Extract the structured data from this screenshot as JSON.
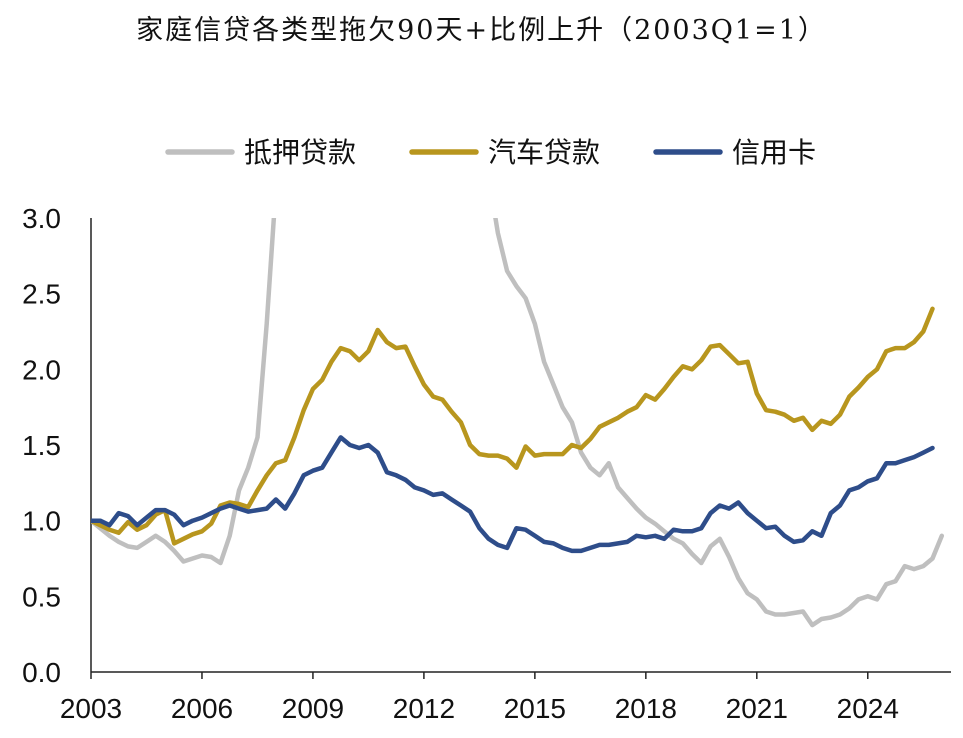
{
  "chart_data": {
    "type": "line",
    "title": "家庭信贷各类型拖欠90天+比例上升（2003Q1=1）",
    "xlabel": "",
    "ylabel": "",
    "xlim": [
      2003,
      2026.25
    ],
    "ylim": [
      0,
      3.0
    ],
    "yticks": [
      0.0,
      0.5,
      1.0,
      1.5,
      2.0,
      2.5,
      3.0
    ],
    "ytick_labels": [
      "0.0",
      "0.5",
      "1.0",
      "1.5",
      "2.0",
      "2.5",
      "3.0"
    ],
    "xticks": [
      2003,
      2006,
      2009,
      2012,
      2015,
      2018,
      2021,
      2024
    ],
    "xtick_labels": [
      "2003",
      "2006",
      "2009",
      "2012",
      "2015",
      "2018",
      "2021",
      "2024"
    ],
    "legend_position": "top-center",
    "grid": false,
    "series": [
      {
        "name": "抵押贷款",
        "color": "#bfbfbf",
        "points": [
          [
            2003.0,
            1.0
          ],
          [
            2003.25,
            0.95
          ],
          [
            2003.5,
            0.9
          ],
          [
            2003.75,
            0.86
          ],
          [
            2004.0,
            0.83
          ],
          [
            2004.25,
            0.82
          ],
          [
            2004.5,
            0.86
          ],
          [
            2004.75,
            0.9
          ],
          [
            2005.0,
            0.86
          ],
          [
            2005.25,
            0.8
          ],
          [
            2005.5,
            0.73
          ],
          [
            2005.75,
            0.75
          ],
          [
            2006.0,
            0.77
          ],
          [
            2006.25,
            0.76
          ],
          [
            2006.5,
            0.72
          ],
          [
            2006.75,
            0.9
          ],
          [
            2007.0,
            1.2
          ],
          [
            2007.25,
            1.35
          ],
          [
            2007.5,
            1.55
          ],
          [
            2007.75,
            2.3
          ],
          [
            2008.0,
            3.2
          ]
        ]
      },
      {
        "name": "抵押贷款",
        "color": "#bfbfbf",
        "points": [
          [
            2013.8,
            3.2
          ],
          [
            2014.0,
            2.9
          ],
          [
            2014.25,
            2.65
          ],
          [
            2014.5,
            2.55
          ],
          [
            2014.75,
            2.47
          ],
          [
            2015.0,
            2.3
          ],
          [
            2015.25,
            2.05
          ],
          [
            2015.5,
            1.9
          ],
          [
            2015.75,
            1.75
          ],
          [
            2016.0,
            1.65
          ],
          [
            2016.25,
            1.45
          ],
          [
            2016.5,
            1.35
          ],
          [
            2016.75,
            1.3
          ],
          [
            2017.0,
            1.38
          ],
          [
            2017.25,
            1.22
          ],
          [
            2017.5,
            1.15
          ],
          [
            2017.75,
            1.08
          ],
          [
            2018.0,
            1.02
          ],
          [
            2018.25,
            0.98
          ],
          [
            2018.5,
            0.93
          ],
          [
            2018.75,
            0.88
          ],
          [
            2019.0,
            0.85
          ],
          [
            2019.25,
            0.78
          ],
          [
            2019.5,
            0.72
          ],
          [
            2019.75,
            0.83
          ],
          [
            2020.0,
            0.88
          ],
          [
            2020.25,
            0.76
          ],
          [
            2020.5,
            0.62
          ],
          [
            2020.75,
            0.52
          ],
          [
            2021.0,
            0.48
          ],
          [
            2021.25,
            0.4
          ],
          [
            2021.5,
            0.38
          ],
          [
            2021.75,
            0.38
          ],
          [
            2022.0,
            0.39
          ],
          [
            2022.25,
            0.4
          ],
          [
            2022.5,
            0.31
          ],
          [
            2022.75,
            0.35
          ],
          [
            2023.0,
            0.36
          ],
          [
            2023.25,
            0.38
          ],
          [
            2023.5,
            0.42
          ],
          [
            2023.75,
            0.48
          ],
          [
            2024.0,
            0.5
          ],
          [
            2024.25,
            0.48
          ],
          [
            2024.5,
            0.58
          ],
          [
            2024.75,
            0.6
          ],
          [
            2025.0,
            0.7
          ],
          [
            2025.25,
            0.68
          ],
          [
            2025.5,
            0.7
          ],
          [
            2025.75,
            0.75
          ],
          [
            2026.0,
            0.9
          ]
        ]
      },
      {
        "name": "汽车贷款",
        "color": "#b8961e",
        "points": [
          [
            2003.0,
            1.0
          ],
          [
            2003.25,
            0.97
          ],
          [
            2003.5,
            0.94
          ],
          [
            2003.75,
            0.92
          ],
          [
            2004.0,
            0.99
          ],
          [
            2004.25,
            0.94
          ],
          [
            2004.5,
            0.97
          ],
          [
            2004.75,
            1.04
          ],
          [
            2005.0,
            1.07
          ],
          [
            2005.25,
            0.85
          ],
          [
            2005.5,
            0.88
          ],
          [
            2005.75,
            0.91
          ],
          [
            2006.0,
            0.93
          ],
          [
            2006.25,
            0.98
          ],
          [
            2006.5,
            1.1
          ],
          [
            2006.75,
            1.12
          ],
          [
            2007.0,
            1.11
          ],
          [
            2007.25,
            1.09
          ],
          [
            2007.5,
            1.2
          ],
          [
            2007.75,
            1.3
          ],
          [
            2008.0,
            1.38
          ],
          [
            2008.25,
            1.4
          ],
          [
            2008.5,
            1.55
          ],
          [
            2008.75,
            1.73
          ],
          [
            2009.0,
            1.87
          ],
          [
            2009.25,
            1.93
          ],
          [
            2009.5,
            2.05
          ],
          [
            2009.75,
            2.14
          ],
          [
            2010.0,
            2.12
          ],
          [
            2010.25,
            2.06
          ],
          [
            2010.5,
            2.12
          ],
          [
            2010.75,
            2.26
          ],
          [
            2011.0,
            2.18
          ],
          [
            2011.25,
            2.14
          ],
          [
            2011.5,
            2.15
          ],
          [
            2011.75,
            2.02
          ],
          [
            2012.0,
            1.9
          ],
          [
            2012.25,
            1.82
          ],
          [
            2012.5,
            1.8
          ],
          [
            2012.75,
            1.72
          ],
          [
            2013.0,
            1.65
          ],
          [
            2013.25,
            1.5
          ],
          [
            2013.5,
            1.44
          ],
          [
            2013.75,
            1.43
          ],
          [
            2014.0,
            1.43
          ],
          [
            2014.25,
            1.41
          ],
          [
            2014.5,
            1.35
          ],
          [
            2014.75,
            1.49
          ],
          [
            2015.0,
            1.43
          ],
          [
            2015.25,
            1.44
          ],
          [
            2015.5,
            1.44
          ],
          [
            2015.75,
            1.44
          ],
          [
            2016.0,
            1.5
          ],
          [
            2016.25,
            1.48
          ],
          [
            2016.5,
            1.54
          ],
          [
            2016.75,
            1.62
          ],
          [
            2017.0,
            1.65
          ],
          [
            2017.25,
            1.68
          ],
          [
            2017.5,
            1.72
          ],
          [
            2017.75,
            1.75
          ],
          [
            2018.0,
            1.83
          ],
          [
            2018.25,
            1.8
          ],
          [
            2018.5,
            1.87
          ],
          [
            2018.75,
            1.95
          ],
          [
            2019.0,
            2.02
          ],
          [
            2019.25,
            2.0
          ],
          [
            2019.5,
            2.06
          ],
          [
            2019.75,
            2.15
          ],
          [
            2020.0,
            2.16
          ],
          [
            2020.25,
            2.1
          ],
          [
            2020.5,
            2.04
          ],
          [
            2020.75,
            2.05
          ],
          [
            2021.0,
            1.84
          ],
          [
            2021.25,
            1.73
          ],
          [
            2021.5,
            1.72
          ],
          [
            2021.75,
            1.7
          ],
          [
            2022.0,
            1.66
          ],
          [
            2022.25,
            1.68
          ],
          [
            2022.5,
            1.6
          ],
          [
            2022.75,
            1.66
          ],
          [
            2023.0,
            1.64
          ],
          [
            2023.25,
            1.7
          ],
          [
            2023.5,
            1.82
          ],
          [
            2023.75,
            1.88
          ],
          [
            2024.0,
            1.95
          ],
          [
            2024.25,
            2.0
          ],
          [
            2024.5,
            2.12
          ],
          [
            2024.75,
            2.14
          ],
          [
            2025.0,
            2.14
          ],
          [
            2025.25,
            2.18
          ],
          [
            2025.5,
            2.25
          ],
          [
            2025.75,
            2.4
          ]
        ]
      },
      {
        "name": "信用卡",
        "color": "#2e4d8a",
        "points": [
          [
            2003.0,
            1.0
          ],
          [
            2003.25,
            1.0
          ],
          [
            2003.5,
            0.97
          ],
          [
            2003.75,
            1.05
          ],
          [
            2004.0,
            1.03
          ],
          [
            2004.25,
            0.97
          ],
          [
            2004.5,
            1.02
          ],
          [
            2004.75,
            1.07
          ],
          [
            2005.0,
            1.07
          ],
          [
            2005.25,
            1.04
          ],
          [
            2005.5,
            0.97
          ],
          [
            2005.75,
            1.0
          ],
          [
            2006.0,
            1.02
          ],
          [
            2006.25,
            1.05
          ],
          [
            2006.5,
            1.08
          ],
          [
            2006.75,
            1.1
          ],
          [
            2007.0,
            1.08
          ],
          [
            2007.25,
            1.06
          ],
          [
            2007.5,
            1.07
          ],
          [
            2007.75,
            1.08
          ],
          [
            2008.0,
            1.14
          ],
          [
            2008.25,
            1.08
          ],
          [
            2008.5,
            1.18
          ],
          [
            2008.75,
            1.3
          ],
          [
            2009.0,
            1.33
          ],
          [
            2009.25,
            1.35
          ],
          [
            2009.5,
            1.45
          ],
          [
            2009.75,
            1.55
          ],
          [
            2010.0,
            1.5
          ],
          [
            2010.25,
            1.48
          ],
          [
            2010.5,
            1.5
          ],
          [
            2010.75,
            1.45
          ],
          [
            2011.0,
            1.32
          ],
          [
            2011.25,
            1.3
          ],
          [
            2011.5,
            1.27
          ],
          [
            2011.75,
            1.22
          ],
          [
            2012.0,
            1.2
          ],
          [
            2012.25,
            1.17
          ],
          [
            2012.5,
            1.18
          ],
          [
            2012.75,
            1.14
          ],
          [
            2013.0,
            1.1
          ],
          [
            2013.25,
            1.06
          ],
          [
            2013.5,
            0.95
          ],
          [
            2013.75,
            0.88
          ],
          [
            2014.0,
            0.84
          ],
          [
            2014.25,
            0.82
          ],
          [
            2014.5,
            0.95
          ],
          [
            2014.75,
            0.94
          ],
          [
            2015.0,
            0.9
          ],
          [
            2015.25,
            0.86
          ],
          [
            2015.5,
            0.85
          ],
          [
            2015.75,
            0.82
          ],
          [
            2016.0,
            0.8
          ],
          [
            2016.25,
            0.8
          ],
          [
            2016.5,
            0.82
          ],
          [
            2016.75,
            0.84
          ],
          [
            2017.0,
            0.84
          ],
          [
            2017.25,
            0.85
          ],
          [
            2017.5,
            0.86
          ],
          [
            2017.75,
            0.9
          ],
          [
            2018.0,
            0.89
          ],
          [
            2018.25,
            0.9
          ],
          [
            2018.5,
            0.88
          ],
          [
            2018.75,
            0.94
          ],
          [
            2019.0,
            0.93
          ],
          [
            2019.25,
            0.93
          ],
          [
            2019.5,
            0.95
          ],
          [
            2019.75,
            1.05
          ],
          [
            2020.0,
            1.1
          ],
          [
            2020.25,
            1.08
          ],
          [
            2020.5,
            1.12
          ],
          [
            2020.75,
            1.05
          ],
          [
            2021.0,
            1.0
          ],
          [
            2021.25,
            0.95
          ],
          [
            2021.5,
            0.96
          ],
          [
            2021.75,
            0.9
          ],
          [
            2022.0,
            0.86
          ],
          [
            2022.25,
            0.87
          ],
          [
            2022.5,
            0.93
          ],
          [
            2022.75,
            0.9
          ],
          [
            2023.0,
            1.05
          ],
          [
            2023.25,
            1.1
          ],
          [
            2023.5,
            1.2
          ],
          [
            2023.75,
            1.22
          ],
          [
            2024.0,
            1.26
          ],
          [
            2024.25,
            1.28
          ],
          [
            2024.5,
            1.38
          ],
          [
            2024.75,
            1.38
          ],
          [
            2025.0,
            1.4
          ],
          [
            2025.25,
            1.42
          ],
          [
            2025.5,
            1.45
          ],
          [
            2025.75,
            1.48
          ]
        ]
      }
    ]
  },
  "legend": [
    {
      "name": "抵押贷款",
      "color": "#bfbfbf"
    },
    {
      "name": "汽车贷款",
      "color": "#b8961e"
    },
    {
      "name": "信用卡",
      "color": "#2e4d8a"
    }
  ]
}
